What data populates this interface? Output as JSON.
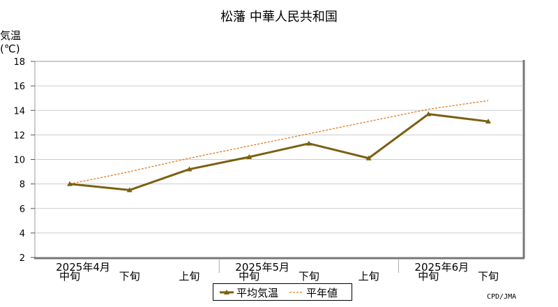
{
  "chart_data": {
    "type": "line",
    "title": "松藩 中華人民共和国",
    "ylabel_line1": "気温",
    "ylabel_line2": "(℃)",
    "ylim": [
      2,
      18
    ],
    "yticks": [
      2,
      4,
      6,
      8,
      10,
      12,
      14,
      16,
      18
    ],
    "categories": [
      "中旬",
      "下旬",
      "上旬",
      "中旬",
      "下旬",
      "上旬",
      "中旬",
      "下旬"
    ],
    "month_labels": [
      {
        "label": "2025年4月",
        "index": 0
      },
      {
        "label": "2025年5月",
        "index": 3
      },
      {
        "label": "2025年6月",
        "index": 6
      }
    ],
    "series": [
      {
        "name": "平均気温",
        "values": [
          8.0,
          7.5,
          9.2,
          10.2,
          11.3,
          10.1,
          13.7,
          13.1
        ],
        "color": "#7b6010",
        "style": "solid-triangle"
      },
      {
        "name": "平年値",
        "values": [
          8.0,
          9.0,
          10.1,
          11.1,
          12.1,
          13.1,
          14.1,
          14.8
        ],
        "color": "#e07a20",
        "style": "dashed"
      }
    ],
    "grid": true,
    "legend_position": "bottom-center",
    "credit": "CPD/JMA"
  }
}
